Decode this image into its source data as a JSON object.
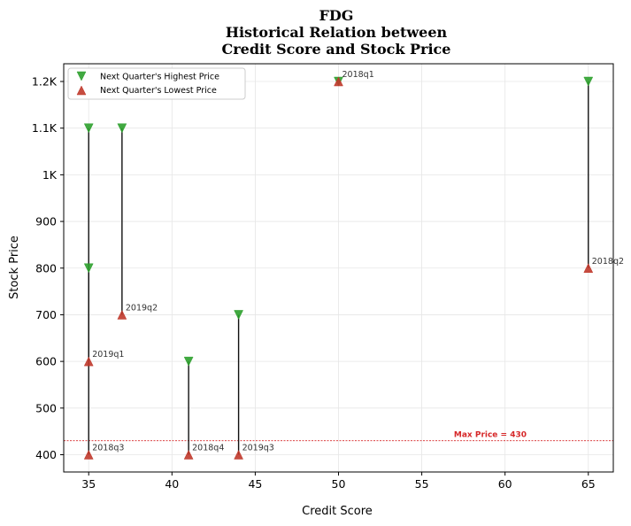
{
  "chart_data": {
    "type": "scatter",
    "title_lines": [
      "FDG",
      "Historical Relation between",
      "Credit Score and Stock Price"
    ],
    "xlabel": "Credit Score",
    "ylabel": "Stock Price",
    "xlim": [
      33.5,
      66.5
    ],
    "ylim": [
      363,
      1238
    ],
    "xticks": [
      35,
      40,
      45,
      50,
      55,
      60,
      65
    ],
    "yticks": [
      {
        "v": 400,
        "label": "400"
      },
      {
        "v": 500,
        "label": "500"
      },
      {
        "v": 600,
        "label": "600"
      },
      {
        "v": 700,
        "label": "700"
      },
      {
        "v": 800,
        "label": "800"
      },
      {
        "v": 900,
        "label": "900"
      },
      {
        "v": 1000,
        "label": "1K"
      },
      {
        "v": 1100,
        "label": "1.1K"
      },
      {
        "v": 1200,
        "label": "1.2K"
      }
    ],
    "grid": true,
    "legend_position": "top-left",
    "series": [
      {
        "name": "Next Quarter's Highest Price",
        "marker": "triangle-down",
        "color": "#2ca02c"
      },
      {
        "name": "Next Quarter's Lowest Price",
        "marker": "triangle-up",
        "color": "#c0392b"
      }
    ],
    "points": [
      {
        "label": "2018q1",
        "x": 50,
        "high": 1200,
        "low": 1200
      },
      {
        "label": "2018q2",
        "x": 65,
        "high": 1200,
        "low": 800
      },
      {
        "label": "2018q3",
        "x": 35,
        "high": 1100,
        "low": 400
      },
      {
        "label": "2018q4",
        "x": 41,
        "high": 600,
        "low": 400
      },
      {
        "label": "2019q1",
        "x": 35,
        "high": 800,
        "low": 600
      },
      {
        "label": "2019q2",
        "x": 37,
        "high": 1100,
        "low": 700
      },
      {
        "label": "2019q3",
        "x": 44,
        "high": 700,
        "low": 400
      }
    ],
    "max_price": {
      "value": 430,
      "label": "Max Price = 430",
      "color": "#d62728"
    }
  }
}
